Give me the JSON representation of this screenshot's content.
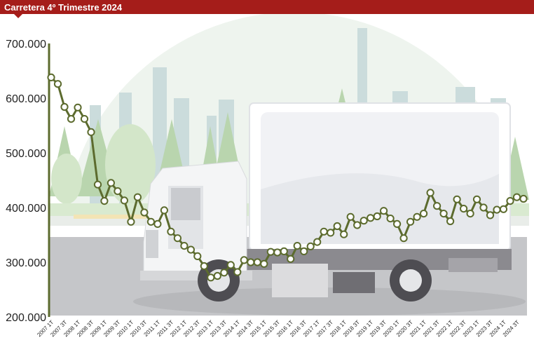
{
  "header": {
    "title": "Carretera 4º Trimestre 2024"
  },
  "colors": {
    "header": "#a51d1a",
    "line": "#5c6b2e",
    "marker_fill": "#ffffff",
    "axis": "#5c6b2e"
  },
  "chart_data": {
    "type": "line",
    "title": "Carretera 4º Trimestre 2024",
    "xlabel": "",
    "ylabel": "",
    "ylim": [
      200000,
      700000
    ],
    "yticks": [
      "700.000",
      "600.000",
      "500.000",
      "400.000",
      "300.000",
      "200.000"
    ],
    "ytick_values": [
      700000,
      600000,
      500000,
      400000,
      300000,
      200000
    ],
    "grid": false,
    "legend": "none",
    "categories": [
      "2007 1T",
      "2007 2T",
      "2007 3T",
      "2007 4T",
      "2008 1T",
      "2008 2T",
      "2008 3T",
      "2008 4T",
      "2009 1T",
      "2009 2T",
      "2009 3T",
      "2009 4T",
      "2010 1T",
      "2010 2T",
      "2010 3T",
      "2010 4T",
      "2011 1T",
      "2011 2T",
      "2011 3T",
      "2011 4T",
      "2012 1T",
      "2012 2T",
      "2012 3T",
      "2012 4T",
      "2013 1T",
      "2013 2T",
      "2013 3T",
      "2013 4T",
      "2014 1T",
      "2014 2T",
      "2014 3T",
      "2014 4T",
      "2015 1T",
      "2015 2T",
      "2015 3T",
      "2015 4T",
      "2016 1T",
      "2016 2T",
      "2016 3T",
      "2016 4T",
      "2017 1T",
      "2017 2T",
      "2017 3T",
      "2017 4T",
      "2018 1T",
      "2018 2T",
      "2018 3T",
      "2018 4T",
      "2019 1T",
      "2019 2T",
      "2019 3T",
      "2019 4T",
      "2020 1T",
      "2020 2T",
      "2020 3T",
      "2020 4T",
      "2021 1T",
      "2021 2T",
      "2021 3T",
      "2021 4T",
      "2022 1T",
      "2022 2T",
      "2022 3T",
      "2022 4T",
      "2023 1T",
      "2023 2T",
      "2023 3T",
      "2023 4T",
      "2024 1T",
      "2024 2T",
      "2024 3T",
      "2024 4T"
    ],
    "xtick_labels": [
      "2007 1T",
      "2007 3T",
      "2008 1T",
      "2008 3T",
      "2009 1T",
      "2009 3T",
      "2010 1T",
      "2010 3T",
      "2011 1T",
      "2011 3T",
      "2012 1T",
      "2012 3T",
      "2013 1T",
      "2013 3T",
      "2014 1T",
      "2014 3T",
      "2015 1T",
      "2015 3T",
      "2016 1T",
      "2016 3T",
      "2017 1T",
      "2017 3T",
      "2018 1T",
      "2018 3T",
      "2019 1T",
      "2019 3T",
      "2020 1T",
      "2020 3T",
      "2021 1T",
      "2021 3T",
      "2022 1T",
      "2022 3T",
      "2023 1T",
      "2023 3T",
      "2024 1T",
      "2024 3T"
    ],
    "values": [
      638000,
      626000,
      584000,
      562000,
      583000,
      562000,
      538000,
      442000,
      412000,
      445000,
      430000,
      413000,
      374000,
      419000,
      391000,
      374000,
      370000,
      395000,
      356000,
      344000,
      330000,
      323000,
      311000,
      293000,
      272000,
      275000,
      281000,
      295000,
      282000,
      304000,
      300000,
      300000,
      297000,
      319000,
      318000,
      320000,
      306000,
      330000,
      320000,
      329000,
      337000,
      356000,
      354000,
      366000,
      351000,
      383000,
      368000,
      376000,
      381000,
      384000,
      394000,
      380000,
      370000,
      344000,
      374000,
      383000,
      389000,
      427000,
      403000,
      389000,
      375000,
      415000,
      398000,
      389000,
      415000,
      400000,
      386000,
      396000,
      397000,
      412000,
      419000,
      416000
    ]
  }
}
